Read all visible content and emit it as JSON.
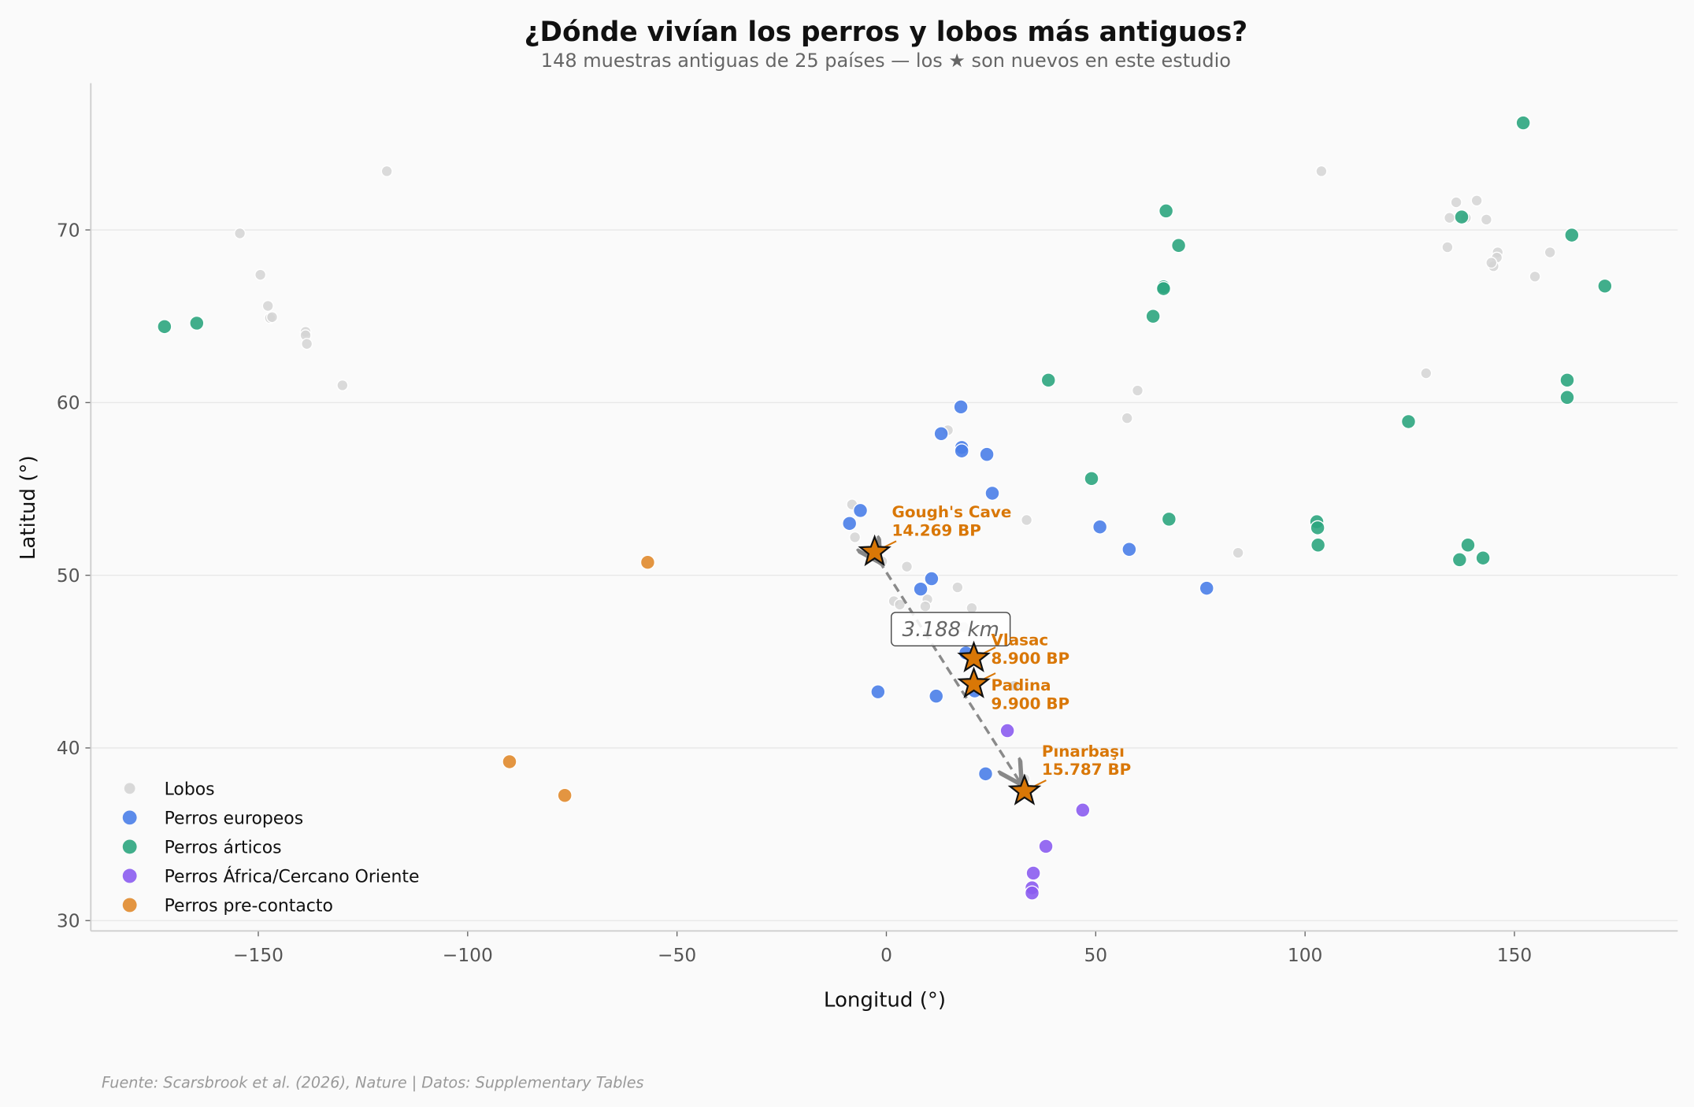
{
  "chart_data": {
    "type": "scatter",
    "title": "¿Dónde vivían los perros y lobos más antiguos?",
    "subtitle": "148 muestras antiguas de 25 países — los ★ son nuevos en este estudio",
    "xlabel": "Longitud (°)",
    "ylabel": "Latitud (°)",
    "xlim": [
      -190,
      189
    ],
    "ylim": [
      29.4,
      78.5
    ],
    "xticks": [
      -150,
      -100,
      -50,
      0,
      50,
      100,
      150
    ],
    "yticks": [
      30,
      40,
      50,
      60,
      70
    ],
    "xtick_labels": [
      "−150",
      "−100",
      "−50",
      "0",
      "50",
      "100",
      "150"
    ],
    "ytick_labels": [
      "30",
      "40",
      "50",
      "60",
      "70"
    ],
    "grid": "horizontal",
    "legend_position": "lower-left",
    "series": [
      {
        "name": "Lobos",
        "color": "#d4d4d4",
        "points": [
          [
            -119.3,
            73.4
          ],
          [
            -154.4,
            69.8
          ],
          [
            -149.5,
            67.4
          ],
          [
            -147.7,
            65.6
          ],
          [
            -147.2,
            64.9
          ],
          [
            -146.7,
            64.95
          ],
          [
            -138.7,
            64.1
          ],
          [
            -138.7,
            63.9
          ],
          [
            -138.4,
            63.4
          ],
          [
            -129.9,
            61.0
          ],
          [
            103.9,
            73.4
          ],
          [
            136.1,
            71.6
          ],
          [
            141.0,
            71.7
          ],
          [
            134.5,
            70.7
          ],
          [
            138.4,
            70.7
          ],
          [
            143.3,
            70.6
          ],
          [
            146.0,
            68.7
          ],
          [
            145.8,
            68.4
          ],
          [
            145.0,
            67.9
          ],
          [
            144.5,
            68.1
          ],
          [
            158.5,
            68.7
          ],
          [
            154.9,
            67.3
          ],
          [
            134.0,
            69.0
          ],
          [
            128.9,
            61.7
          ],
          [
            60.0,
            60.7
          ],
          [
            57.5,
            59.1
          ],
          [
            84.0,
            51.3
          ],
          [
            33.5,
            53.2
          ],
          [
            14.7,
            58.4
          ],
          [
            -8.2,
            54.1
          ],
          [
            -7.5,
            52.2
          ],
          [
            4.9,
            50.5
          ],
          [
            1.8,
            48.5
          ],
          [
            3.2,
            48.3
          ],
          [
            9.8,
            48.6
          ],
          [
            9.3,
            48.2
          ],
          [
            17.0,
            49.3
          ],
          [
            20.4,
            48.1
          ],
          [
            -1.0,
            50.8
          ],
          [
            18.5,
            47.0
          ],
          [
            30.5,
            43.6
          ],
          [
            33.0,
            38.2
          ]
        ]
      },
      {
        "name": "Perros europeos",
        "color": "#4a7ee8",
        "points": [
          [
            17.8,
            59.75
          ],
          [
            13.1,
            58.2
          ],
          [
            18.0,
            57.4
          ],
          [
            18.0,
            57.2
          ],
          [
            24.0,
            57.0
          ],
          [
            25.3,
            54.75
          ],
          [
            -6.2,
            53.75
          ],
          [
            -8.8,
            53.0
          ],
          [
            51.0,
            52.8
          ],
          [
            58.0,
            51.5
          ],
          [
            76.5,
            49.25
          ],
          [
            10.8,
            49.8
          ],
          [
            8.2,
            49.2
          ],
          [
            19.0,
            45.5
          ],
          [
            -2.0,
            43.25
          ],
          [
            11.9,
            43.0
          ],
          [
            21.1,
            43.3
          ],
          [
            23.7,
            38.5
          ]
        ]
      },
      {
        "name": "Perros árticos",
        "color": "#2ca57e",
        "points": [
          [
            -172.4,
            64.4
          ],
          [
            -164.7,
            64.6
          ],
          [
            66.8,
            71.1
          ],
          [
            69.8,
            69.1
          ],
          [
            66.2,
            66.7
          ],
          [
            66.2,
            66.6
          ],
          [
            63.7,
            65.0
          ],
          [
            38.7,
            61.3
          ],
          [
            49.0,
            55.6
          ],
          [
            67.5,
            53.25
          ],
          [
            124.7,
            58.9
          ],
          [
            102.8,
            53.1
          ],
          [
            103.0,
            52.75
          ],
          [
            103.1,
            51.75
          ],
          [
            137.4,
            70.75
          ],
          [
            152.1,
            76.2
          ],
          [
            163.7,
            69.7
          ],
          [
            171.6,
            66.75
          ],
          [
            162.6,
            61.3
          ],
          [
            162.6,
            60.3
          ],
          [
            138.9,
            51.75
          ],
          [
            136.9,
            50.9
          ],
          [
            142.5,
            51.0
          ]
        ]
      },
      {
        "name": "Perros África/Cercano Oriente",
        "color": "#8b5cf0",
        "points": [
          [
            28.9,
            41.0
          ],
          [
            46.9,
            36.4
          ],
          [
            38.1,
            34.3
          ],
          [
            35.1,
            32.75
          ],
          [
            34.8,
            31.9
          ],
          [
            34.8,
            31.6
          ]
        ]
      },
      {
        "name": "Perros pre-contacto",
        "color": "#e08a2c",
        "points": [
          [
            -57.0,
            50.75
          ],
          [
            -90.0,
            39.2
          ],
          [
            -76.8,
            37.25
          ]
        ]
      }
    ],
    "highlighted": {
      "color": "#d97706",
      "points": [
        {
          "site": "Gough's Cave",
          "age": "14.269 BP",
          "lon": -2.8,
          "lat": 51.35
        },
        {
          "site": "Vlasac",
          "age": "8.900 BP",
          "lon": 20.9,
          "lat": 45.2
        },
        {
          "site": "Padina",
          "age": "9.900 BP",
          "lon": 20.9,
          "lat": 43.7
        },
        {
          "site": "Pınarbaşı",
          "age": "15.787 BP",
          "lon": 33.0,
          "lat": 37.5
        }
      ]
    },
    "distance_annotation": "3.188 km",
    "source": "Fuente: Scarsbrook et al. (2026), Nature | Datos: Supplementary Tables"
  }
}
